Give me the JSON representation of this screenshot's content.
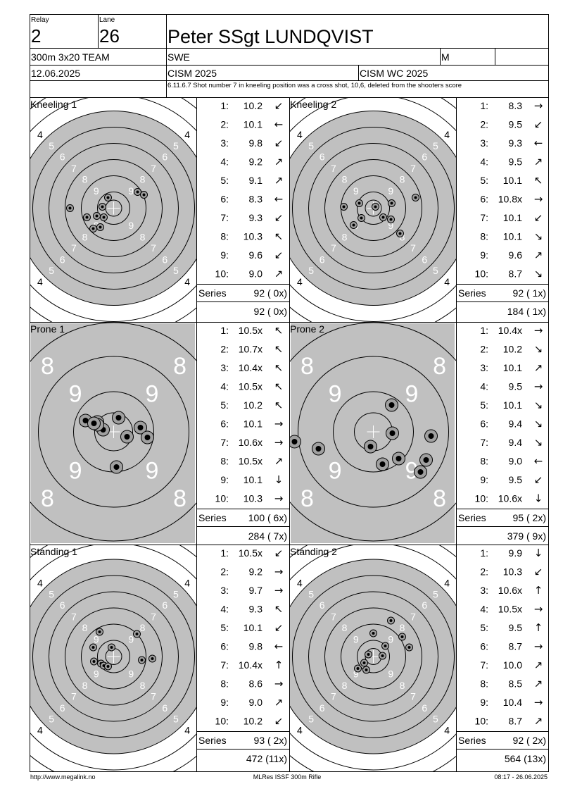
{
  "header": {
    "relay_label": "Relay",
    "relay": "2",
    "lane_label": "Lane",
    "lane": "26",
    "name": "Peter SSgt LUNDQVIST",
    "event": "300m 3x20 TEAM",
    "nation": "SWE",
    "gender": "M",
    "date": "12.06.2025",
    "competition": "CISM 2025",
    "championship": "CISM WC 2025",
    "note": "6.11.6.7 Shot number 7 in kneeling position was a cross shot, 10,6, deleted from the shooters score"
  },
  "targets": {
    "standard": {
      "ring_labels": [
        "9",
        "8",
        "7",
        "6",
        "5",
        "4"
      ]
    },
    "prone": {
      "ring_labels": [
        "9",
        "8"
      ]
    }
  },
  "shot_numbers": [
    "1:",
    "2:",
    "3:",
    "4:",
    "5:",
    "6:",
    "7:",
    "8:",
    "9:",
    "10:"
  ],
  "series_label": "Series",
  "panels": [
    {
      "title": "Kneeling 1",
      "target": "standard",
      "shots": [
        {
          "score": "10.2",
          "dir": "↙"
        },
        {
          "score": "10.1",
          "dir": "←"
        },
        {
          "score": "9.8",
          "dir": "↙"
        },
        {
          "score": "9.2",
          "dir": "↗"
        },
        {
          "score": "9.1",
          "dir": "↗"
        },
        {
          "score": "8.3",
          "dir": "←"
        },
        {
          "score": "9.3",
          "dir": "↙"
        },
        {
          "score": "10.3",
          "dir": "↖"
        },
        {
          "score": "9.6",
          "dir": "↙"
        },
        {
          "score": "9.0",
          "dir": "↗"
        }
      ],
      "series": "92 ( 0x)",
      "total": "92 ( 0x)"
    },
    {
      "title": "Kneeling 2",
      "target": "standard",
      "shots": [
        {
          "score": "8.3",
          "dir": "→"
        },
        {
          "score": "9.5",
          "dir": "↙"
        },
        {
          "score": "9.3",
          "dir": "←"
        },
        {
          "score": "9.5",
          "dir": "↗"
        },
        {
          "score": "10.1",
          "dir": "↖"
        },
        {
          "score": "10.8x",
          "dir": "→"
        },
        {
          "score": "10.1",
          "dir": "↙"
        },
        {
          "score": "10.1",
          "dir": "↘"
        },
        {
          "score": "9.6",
          "dir": "↗"
        },
        {
          "score": "8.7",
          "dir": "↘"
        }
      ],
      "series": "92 ( 1x)",
      "total": "184 ( 1x)"
    },
    {
      "title": "Prone 1",
      "target": "prone",
      "shots": [
        {
          "score": "10.5x",
          "dir": "↖"
        },
        {
          "score": "10.7x",
          "dir": "↖"
        },
        {
          "score": "10.4x",
          "dir": "↖"
        },
        {
          "score": "10.5x",
          "dir": "↖"
        },
        {
          "score": "10.2",
          "dir": "↖"
        },
        {
          "score": "10.1",
          "dir": "→"
        },
        {
          "score": "10.6x",
          "dir": "→"
        },
        {
          "score": "10.5x",
          "dir": "↗"
        },
        {
          "score": "10.1",
          "dir": "↓"
        },
        {
          "score": "10.3",
          "dir": "→"
        }
      ],
      "series": "100 ( 6x)",
      "total": "284 ( 7x)"
    },
    {
      "title": "Prone 2",
      "target": "prone",
      "shots": [
        {
          "score": "10.4x",
          "dir": "→"
        },
        {
          "score": "10.2",
          "dir": "↘"
        },
        {
          "score": "10.1",
          "dir": "↗"
        },
        {
          "score": "9.5",
          "dir": "→"
        },
        {
          "score": "10.1",
          "dir": "↘"
        },
        {
          "score": "9.4",
          "dir": "↘"
        },
        {
          "score": "9.4",
          "dir": "↘"
        },
        {
          "score": "9.0",
          "dir": "←"
        },
        {
          "score": "9.5",
          "dir": "↙"
        },
        {
          "score": "10.6x",
          "dir": "↓"
        }
      ],
      "series": "95 ( 2x)",
      "total": "379 ( 9x)"
    },
    {
      "title": "Standing 1",
      "target": "standard",
      "shots": [
        {
          "score": "10.5x",
          "dir": "↙"
        },
        {
          "score": "9.2",
          "dir": "→"
        },
        {
          "score": "9.7",
          "dir": "→"
        },
        {
          "score": "9.3",
          "dir": "↖"
        },
        {
          "score": "10.1",
          "dir": "↙"
        },
        {
          "score": "9.8",
          "dir": "←"
        },
        {
          "score": "10.4x",
          "dir": "↑"
        },
        {
          "score": "8.6",
          "dir": "→"
        },
        {
          "score": "9.0",
          "dir": "↗"
        },
        {
          "score": "10.2",
          "dir": "↙"
        }
      ],
      "series": "93 ( 2x)",
      "total": "472 (11x)"
    },
    {
      "title": "Standing 2",
      "target": "standard",
      "shots": [
        {
          "score": "9.9",
          "dir": "↓"
        },
        {
          "score": "10.3",
          "dir": "↙"
        },
        {
          "score": "10.6x",
          "dir": "↑"
        },
        {
          "score": "10.5x",
          "dir": "→"
        },
        {
          "score": "9.5",
          "dir": "↑"
        },
        {
          "score": "8.7",
          "dir": "→"
        },
        {
          "score": "10.0",
          "dir": "↗"
        },
        {
          "score": "8.5",
          "dir": "↗"
        },
        {
          "score": "10.4",
          "dir": "→"
        },
        {
          "score": "8.7",
          "dir": "↗"
        }
      ],
      "series": "92 ( 2x)",
      "total": "564 (13x)"
    }
  ],
  "footer": {
    "url": "http://www.megalink.no",
    "software": "MLRes ISSF 300m Rifle",
    "timestamp": "08:17 - 26.06.2025"
  }
}
